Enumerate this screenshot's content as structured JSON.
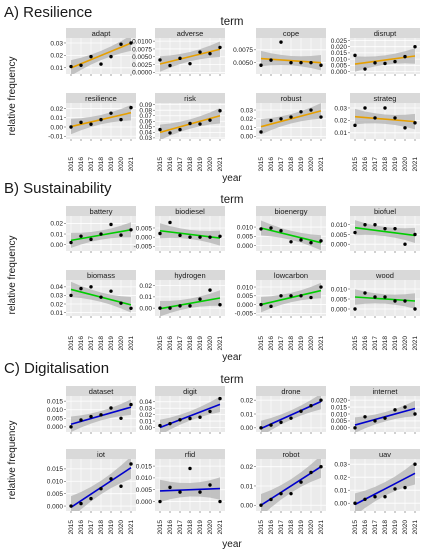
{
  "years": [
    "2015",
    "2016",
    "2017",
    "2018",
    "2019",
    "2020",
    "2021"
  ],
  "y_axis_label": "relative frequency",
  "x_axis_label": "year",
  "facet_header": "term",
  "chart_data": [
    {
      "type": "scatter",
      "section_title": "A) Resilience",
      "line_color": "#E69F00",
      "x": [
        2015,
        2016,
        2017,
        2018,
        2019,
        2020,
        2021
      ],
      "panels": [
        {
          "term": "adapt",
          "values": [
            0.011,
            0.012,
            0.019,
            0.013,
            0.019,
            0.029,
            0.03
          ],
          "ticks": [
            0.01,
            0.02,
            0.03
          ],
          "tick_labels": [
            "0.01",
            "0.02",
            "0.03"
          ],
          "ylim": [
            0.005,
            0.034
          ],
          "fit": [
            0.0099,
            0.0299
          ]
        },
        {
          "term": "adverse",
          "values": [
            0.004,
            0.0022,
            0.0045,
            0.0028,
            0.0065,
            0.006,
            0.008
          ],
          "ticks": [
            0.0,
            0.0025,
            0.005,
            0.0075,
            0.01
          ],
          "tick_labels": [
            "0.0000",
            "0.0025",
            "0.0050",
            "0.0075",
            "0.0100"
          ],
          "ylim": [
            -0.0005,
            0.011
          ],
          "fit": [
            0.0027,
            0.0074
          ]
        },
        {
          "term": "cope",
          "values": [
            0.0045,
            0.0055,
            0.009,
            0.005,
            0.005,
            0.005,
            0.0045
          ],
          "ticks": [
            0.005,
            0.0075
          ],
          "tick_labels": [
            "0.0050",
            "0.0075"
          ],
          "ylim": [
            0.0028,
            0.0098
          ],
          "fit": [
            0.0058,
            0.005
          ]
        },
        {
          "term": "disrupt",
          "values": [
            0.013,
            0.002,
            0.007,
            0.0065,
            0.008,
            0.012,
            0.02
          ],
          "ticks": [
            0.0,
            0.005,
            0.01,
            0.015,
            0.02,
            0.025
          ],
          "tick_labels": [
            "0.000",
            "0.005",
            "0.010",
            "0.015",
            "0.020",
            "0.025"
          ],
          "ylim": [
            -0.002,
            0.027
          ],
          "fit": [
            0.006,
            0.0125
          ]
        },
        {
          "term": "resilience",
          "values": [
            0.0,
            0.005,
            0.003,
            0.008,
            0.015,
            0.008,
            0.021
          ],
          "ticks": [
            -0.01,
            0.0,
            0.01,
            0.02
          ],
          "tick_labels": [
            "-0.01",
            "0.00",
            "0.01",
            "0.02"
          ],
          "ylim": [
            -0.013,
            0.026
          ],
          "fit": [
            0.0005,
            0.0155
          ]
        },
        {
          "term": "risk",
          "values": [
            0.045,
            0.039,
            0.045,
            0.056,
            0.055,
            0.062,
            0.079
          ],
          "ticks": [
            0.03,
            0.04,
            0.05,
            0.06,
            0.07,
            0.08,
            0.09
          ],
          "tick_labels": [
            "0.03",
            "0.04",
            "0.05",
            "0.06",
            "0.07",
            "0.08",
            "0.09"
          ],
          "ylim": [
            0.028,
            0.093
          ],
          "fit": [
            0.04,
            0.07
          ]
        },
        {
          "term": "robust",
          "values": [
            0.005,
            0.018,
            0.02,
            0.022,
            0.028,
            0.03,
            0.022
          ],
          "ticks": [
            0.0,
            0.01,
            0.02,
            0.03
          ],
          "tick_labels": [
            "0.00",
            "0.01",
            "0.02",
            "0.03"
          ],
          "ylim": [
            -0.003,
            0.038
          ],
          "fit": [
            0.011,
            0.029
          ]
        },
        {
          "term": "strateg",
          "values": [
            0.016,
            0.03,
            0.022,
            0.03,
            0.022,
            0.014,
            0.018
          ],
          "ticks": [
            0.01,
            0.02,
            0.03
          ],
          "tick_labels": [
            "0.01",
            "0.02",
            "0.03"
          ],
          "ylim": [
            0.005,
            0.034
          ],
          "fit": [
            0.023,
            0.019
          ]
        }
      ]
    },
    {
      "type": "scatter",
      "section_title": "B) Sustainability",
      "line_color": "#00CC00",
      "x": [
        2015,
        2016,
        2017,
        2018,
        2019,
        2020,
        2021
      ],
      "panels": [
        {
          "term": "battery",
          "values": [
            0.002,
            0.008,
            0.005,
            0.01,
            0.019,
            0.009,
            0.014
          ],
          "ticks": [
            0.0,
            0.01,
            0.02
          ],
          "tick_labels": [
            "0.00",
            "0.01",
            "0.02"
          ],
          "ylim": [
            -0.006,
            0.027
          ],
          "fit": [
            0.004,
            0.014
          ]
        },
        {
          "term": "biodiesel",
          "values": [
            0.002,
            0.008,
            0.001,
            0.0,
            0.0,
            0.0,
            0.0005
          ],
          "ticks": [
            -0.005,
            0.0,
            0.005
          ],
          "tick_labels": [
            "-0.005",
            "0.000",
            "0.005"
          ],
          "ylim": [
            -0.0075,
            0.0115
          ],
          "fit": [
            0.0035,
            -0.0005
          ]
        },
        {
          "term": "bioenergy",
          "values": [
            0.009,
            0.0095,
            0.008,
            0.002,
            0.003,
            0.0015,
            0.0025
          ],
          "ticks": [
            0.0,
            0.005,
            0.01
          ],
          "tick_labels": [
            "0.000",
            "0.005",
            "0.010"
          ],
          "ylim": [
            -0.003,
            0.016
          ],
          "fit": [
            0.0095,
            0.0015
          ]
        },
        {
          "term": "biofuel",
          "values": [
            0.006,
            0.01,
            0.01,
            0.008,
            0.008,
            0.0,
            0.005
          ],
          "ticks": [
            0.0,
            0.005,
            0.01
          ],
          "tick_labels": [
            "0.000",
            "0.005",
            "0.010"
          ],
          "ylim": [
            -0.0035,
            0.0145
          ],
          "fit": [
            0.0085,
            0.0045
          ]
        },
        {
          "term": "biomass",
          "values": [
            0.03,
            0.038,
            0.04,
            0.028,
            0.035,
            0.021,
            0.015
          ],
          "ticks": [
            0.01,
            0.02,
            0.03,
            0.04
          ],
          "tick_labels": [
            "0.01",
            "0.02",
            "0.03",
            "0.04"
          ],
          "ylim": [
            0.006,
            0.048
          ],
          "fit": [
            0.037,
            0.019
          ]
        },
        {
          "term": "hydrogen",
          "values": [
            0.0,
            0.0,
            0.002,
            0.002,
            0.008,
            0.016,
            0.003
          ],
          "ticks": [
            0.0,
            0.01,
            0.02
          ],
          "tick_labels": [
            "0.00",
            "0.01",
            "0.02"
          ],
          "ylim": [
            -0.007,
            0.025
          ],
          "fit": [
            -0.0005,
            0.009
          ]
        },
        {
          "term": "lowcarbon",
          "values": [
            0.0,
            -0.001,
            0.005,
            0.005,
            0.005,
            0.004,
            0.01
          ],
          "ticks": [
            -0.005,
            0.0,
            0.005,
            0.01
          ],
          "tick_labels": [
            "-0.005",
            "0.000",
            "0.005",
            "0.010"
          ],
          "ylim": [
            -0.0065,
            0.014
          ],
          "fit": [
            0.0,
            0.008
          ]
        },
        {
          "term": "wood",
          "values": [
            0.0,
            0.008,
            0.006,
            0.006,
            0.004,
            0.004,
            0.0
          ],
          "ticks": [
            0.0,
            0.005,
            0.01
          ],
          "tick_labels": [
            "0.000",
            "0.005",
            "0.010"
          ],
          "ylim": [
            -0.0035,
            0.0145
          ],
          "fit": [
            0.006,
            0.004
          ]
        }
      ]
    },
    {
      "type": "scatter",
      "section_title": "C) Digitalisation",
      "line_color": "#0000CC",
      "x": [
        2015,
        2016,
        2017,
        2018,
        2019,
        2020,
        2021
      ],
      "panels": [
        {
          "term": "dataset",
          "values": [
            0.0,
            0.004,
            0.006,
            0.007,
            0.011,
            0.005,
            0.013
          ],
          "ticks": [
            0.0,
            0.005,
            0.01,
            0.015
          ],
          "tick_labels": [
            "0.000",
            "0.005",
            "0.010",
            "0.015"
          ],
          "ylim": [
            -0.003,
            0.018
          ],
          "fit": [
            0.0015,
            0.0115
          ]
        },
        {
          "term": "digit",
          "values": [
            0.003,
            0.006,
            0.012,
            0.014,
            0.016,
            0.025,
            0.045
          ],
          "ticks": [
            0.0,
            0.01,
            0.02,
            0.03,
            0.04
          ],
          "tick_labels": [
            "0.00",
            "0.01",
            "0.02",
            "0.03",
            "0.04"
          ],
          "ylim": [
            -0.007,
            0.049
          ],
          "fit": [
            0.0,
            0.036
          ]
        },
        {
          "term": "drone",
          "values": [
            0.0,
            0.002,
            0.004,
            0.007,
            0.012,
            0.016,
            0.02
          ],
          "ticks": [
            0.0,
            0.01,
            0.02
          ],
          "tick_labels": [
            "0.00",
            "0.01",
            "0.02"
          ],
          "ylim": [
            -0.003,
            0.023
          ],
          "fit": [
            -0.0005,
            0.019
          ]
        },
        {
          "term": "internet",
          "values": [
            0.0,
            0.008,
            0.005,
            0.007,
            0.013,
            0.015,
            0.01
          ],
          "ticks": [
            0.0,
            0.005,
            0.01,
            0.015,
            0.02
          ],
          "tick_labels": [
            "0.000",
            "0.005",
            "0.010",
            "0.015",
            "0.020"
          ],
          "ylim": [
            -0.003,
            0.023
          ],
          "fit": [
            0.002,
            0.014
          ]
        },
        {
          "term": "iot",
          "values": [
            0.0,
            0.001,
            0.003,
            0.007,
            0.011,
            0.008,
            0.017
          ],
          "ticks": [
            0.0,
            0.005,
            0.01,
            0.015
          ],
          "tick_labels": [
            "0.000",
            "0.005",
            "0.010",
            "0.015"
          ],
          "ylim": [
            -0.002,
            0.019
          ],
          "fit": [
            -0.0005,
            0.0155
          ]
        },
        {
          "term": "rfid",
          "values": [
            0.0,
            0.006,
            0.004,
            0.014,
            0.004,
            0.007,
            0.0
          ],
          "ticks": [
            0.0,
            0.005,
            0.01,
            0.015
          ],
          "tick_labels": [
            "0.000",
            "0.005",
            "0.010",
            "0.015"
          ],
          "ylim": [
            -0.004,
            0.018
          ],
          "fit": [
            0.0045,
            0.0055
          ]
        },
        {
          "term": "robot",
          "values": [
            0.0,
            0.003,
            0.006,
            0.006,
            0.012,
            0.017,
            0.02
          ],
          "ticks": [
            0.0,
            0.01,
            0.02
          ],
          "tick_labels": [
            "0.00",
            "0.01",
            "0.02"
          ],
          "ylim": [
            -0.003,
            0.024
          ],
          "fit": [
            0.0,
            0.02
          ]
        },
        {
          "term": "uav",
          "values": [
            0.0,
            0.003,
            0.005,
            0.005,
            0.011,
            0.012,
            0.03
          ],
          "ticks": [
            0.0,
            0.01,
            0.02,
            0.03
          ],
          "tick_labels": [
            "0.00",
            "0.01",
            "0.02",
            "0.03"
          ],
          "ylim": [
            -0.006,
            0.034
          ],
          "fit": [
            -0.001,
            0.023
          ]
        }
      ]
    }
  ]
}
